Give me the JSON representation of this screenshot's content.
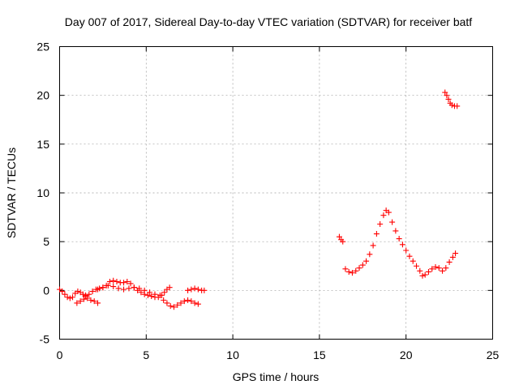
{
  "chart_data": {
    "type": "scatter",
    "title": "Day 007 of 2017, Sidereal Day-to-day VTEC variation (SDTVAR) for receiver batf",
    "xlabel": "GPS time / hours",
    "ylabel": "SDTVAR / TECUs",
    "xlim": [
      0,
      25
    ],
    "ylim": [
      -5,
      25
    ],
    "xticks": [
      0,
      5,
      10,
      15,
      20,
      25
    ],
    "yticks": [
      -5,
      0,
      5,
      10,
      15,
      20,
      25
    ],
    "xtick_labels": [
      "0",
      "5",
      "10",
      "15",
      "20",
      "25"
    ],
    "ytick_labels": [
      "-5",
      "0",
      "5",
      "10",
      "15",
      "20",
      "25"
    ],
    "grid": true,
    "marker": "plus",
    "series": [
      {
        "name": "SDTVAR",
        "color": "#ff0000",
        "segments": [
          {
            "x": [
              0.0,
              0.15,
              0.3,
              0.45,
              0.6,
              0.75,
              0.9,
              1.05,
              1.2,
              1.35,
              1.5
            ],
            "y": [
              0.1,
              -0.1,
              -0.4,
              -0.7,
              -0.8,
              -0.7,
              -0.3,
              -0.1,
              -0.2,
              -0.4,
              -0.5
            ]
          },
          {
            "x": [
              1.0,
              1.2,
              1.4,
              1.6,
              1.8,
              2.0,
              2.2
            ],
            "y": [
              -1.3,
              -1.1,
              -0.9,
              -0.8,
              -1.0,
              -1.1,
              -1.3
            ]
          },
          {
            "x": [
              1.5,
              1.7,
              1.9,
              2.1,
              2.3,
              2.5,
              2.7,
              2.9,
              3.1,
              3.3,
              3.5,
              3.7,
              3.9,
              4.1,
              4.3,
              4.5,
              4.7,
              4.9,
              5.1,
              5.3,
              5.5,
              5.7
            ],
            "y": [
              -0.6,
              -0.4,
              -0.1,
              0.1,
              0.2,
              0.3,
              0.5,
              0.9,
              1.0,
              0.9,
              0.8,
              0.8,
              0.9,
              0.7,
              0.3,
              0.0,
              -0.2,
              -0.4,
              -0.5,
              -0.6,
              -0.7,
              -0.7
            ]
          },
          {
            "x": [
              2.2,
              2.5,
              2.8,
              3.1,
              3.4,
              3.7,
              4.0,
              4.3,
              4.6,
              4.9,
              5.2,
              5.5,
              5.8
            ],
            "y": [
              0.1,
              0.3,
              0.5,
              0.4,
              0.2,
              0.1,
              0.2,
              0.3,
              0.2,
              0.0,
              -0.2,
              -0.4,
              -0.5
            ]
          },
          {
            "x": [
              5.9,
              6.05,
              6.2,
              6.35
            ],
            "y": [
              -0.5,
              -0.2,
              0.1,
              0.3
            ]
          },
          {
            "x": [
              6.0,
              6.2,
              6.4,
              6.6,
              6.8,
              7.0,
              7.2,
              7.4,
              7.6,
              7.8,
              8.0
            ],
            "y": [
              -1.0,
              -1.3,
              -1.6,
              -1.7,
              -1.5,
              -1.3,
              -1.1,
              -1.0,
              -1.1,
              -1.3,
              -1.4
            ]
          },
          {
            "x": [
              7.4,
              7.6,
              7.8,
              8.0,
              8.2,
              8.35
            ],
            "y": [
              0.0,
              0.1,
              0.2,
              0.1,
              0.0,
              0.0
            ]
          },
          {
            "x": [
              16.15,
              16.25,
              16.35
            ],
            "y": [
              5.5,
              5.2,
              5.0
            ]
          },
          {
            "x": [
              16.5,
              16.7,
              16.9,
              17.1,
              17.3,
              17.5,
              17.7,
              17.9,
              18.1,
              18.3,
              18.5,
              18.7,
              18.85,
              19.0,
              19.2,
              19.4,
              19.6,
              19.8,
              20.0,
              20.2,
              20.4,
              20.6,
              20.8,
              20.95,
              21.1,
              21.3,
              21.5,
              21.7,
              21.9,
              22.1,
              22.3,
              22.5,
              22.7,
              22.85
            ],
            "y": [
              2.2,
              1.9,
              1.8,
              2.0,
              2.3,
              2.6,
              3.0,
              3.7,
              4.6,
              5.8,
              6.8,
              7.7,
              8.2,
              8.0,
              7.0,
              6.1,
              5.3,
              4.7,
              4.1,
              3.5,
              3.0,
              2.5,
              2.0,
              1.5,
              1.6,
              1.9,
              2.2,
              2.4,
              2.3,
              2.0,
              2.3,
              2.9,
              3.4,
              3.8
            ]
          },
          {
            "x": [
              22.25,
              22.35,
              22.45,
              22.55,
              22.65,
              22.8,
              22.95
            ],
            "y": [
              20.3,
              20.0,
              19.6,
              19.2,
              19.0,
              18.9,
              18.9
            ]
          }
        ]
      }
    ]
  }
}
